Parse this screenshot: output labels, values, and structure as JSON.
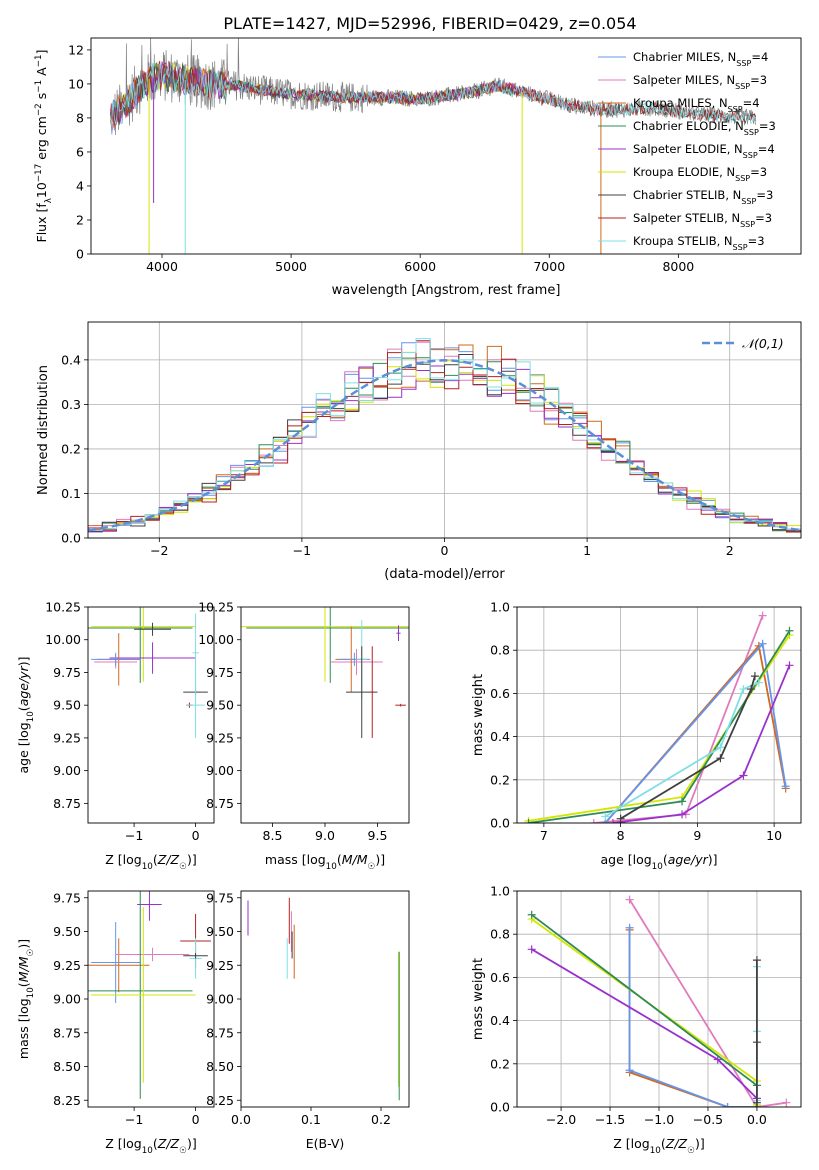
{
  "figure": {
    "title": "PLATE=1427, MJD=52996, FIBERID=0429, z=0.054"
  },
  "colors": {
    "Chabrier MILES": "#6495ed",
    "Salpeter MILES": "#e07bbd",
    "Kroupa MILES": "#d2691e",
    "Chabrier ELODIE": "#2e8b57",
    "Salpeter ELODIE": "#9932cc",
    "Kroupa ELODIE": "#d4e600",
    "Chabrier STELIB": "#404040",
    "Salpeter STELIB": "#b22222",
    "Kroupa STELIB": "#7fdfe6",
    "data": "#808080"
  },
  "chart_data": [
    {
      "id": "spectrum",
      "type": "line",
      "xlabel": "wavelength [Angstrom, rest frame]",
      "ylabel": "Flux [f_λ 10⁻¹⁷ erg cm⁻² s⁻¹ A⁻¹]",
      "xlim": [
        3450,
        8950
      ],
      "ylim": [
        0,
        12.7
      ],
      "xticks": [
        4000,
        5000,
        6000,
        7000,
        8000
      ],
      "yticks": [
        0,
        2,
        4,
        6,
        8,
        10,
        12
      ],
      "legend_position": "top-right",
      "legend": [
        "Chabrier MILES, N_SSP=4",
        "Salpeter MILES, N_SSP=3",
        "Kroupa MILES, N_SSP=4",
        "Chabrier ELODIE, N_SSP=3",
        "Salpeter ELODIE, N_SSP=4",
        "Kroupa ELODIE, N_SSP=3",
        "Chabrier STELIB, N_SSP=3",
        "Salpeter STELIB, N_SSP=3",
        "Kroupa STELIB, N_SSP=3"
      ],
      "continuum": {
        "x": [
          3600,
          3700,
          3800,
          3900,
          4000,
          4100,
          4200,
          4400,
          4600,
          4800,
          5000,
          5200,
          5400,
          5600,
          5800,
          6000,
          6200,
          6400,
          6600,
          6800,
          7000,
          7200,
          7400,
          7600,
          7800,
          8000,
          8200,
          8400,
          8600
        ],
        "y": [
          8.0,
          8.6,
          9.6,
          10.3,
          10.5,
          10.4,
          10.2,
          10.0,
          9.9,
          9.6,
          9.4,
          9.3,
          9.2,
          9.2,
          9.2,
          9.1,
          9.3,
          9.5,
          9.9,
          9.5,
          9.1,
          8.7,
          8.5,
          8.5,
          8.6,
          8.4,
          8.2,
          8.1,
          8.0
        ]
      },
      "dips": [
        {
          "x": 3900,
          "y": 0,
          "series": "Kroupa ELODIE"
        },
        {
          "x": 3935,
          "y": 3.0,
          "series": "Salpeter ELODIE"
        },
        {
          "x": 4180,
          "y": 0,
          "series": "Kroupa STELIB"
        },
        {
          "x": 6790,
          "y": 0,
          "series": "Kroupa ELODIE"
        },
        {
          "x": 7400,
          "y": 0,
          "series": "Kroupa MILES"
        }
      ]
    },
    {
      "id": "residuals",
      "type": "histogram",
      "xlabel": "(data-model)/error",
      "ylabel": "Normed distribution",
      "xlim": [
        -2.5,
        2.5
      ],
      "ylim": [
        0,
        0.485
      ],
      "xticks": [
        -2,
        -1,
        0,
        1,
        2
      ],
      "yticks": [
        0.0,
        0.1,
        0.2,
        0.3,
        0.4
      ],
      "legend_position": "top-right",
      "legend": [
        "𝒩(0,1)"
      ],
      "bin_width": 0.1,
      "grid": true
    },
    {
      "id": "age_vs_Z",
      "type": "errorbar",
      "xlabel": "Z [log₁₀(Z/Z☉)]",
      "ylabel": "age  [log₁₀(age/yr)]",
      "xlim": [
        -1.75,
        0.3
      ],
      "ylim": [
        8.6,
        10.25
      ],
      "xticks": [
        -1,
        0
      ],
      "yticks": [
        8.75,
        9.0,
        9.25,
        9.5,
        9.75,
        10.0,
        10.25
      ],
      "points": [
        {
          "s": "Chabrier ELODIE",
          "x": -0.9,
          "y": 10.09,
          "xe": 0.85,
          "ye": 0.42
        },
        {
          "s": "Kroupa ELODIE",
          "x": -0.85,
          "y": 10.1,
          "xe": 0.85,
          "ye": 0.42
        },
        {
          "s": "Chabrier STELIB",
          "x": -0.7,
          "y": 10.08,
          "xe": 0.3,
          "ye": 0.05
        },
        {
          "s": "Salpeter ELODIE",
          "x": -0.7,
          "y": 9.86,
          "xe": 0.7,
          "ye": 0.12
        },
        {
          "s": "Kroupa MILES",
          "x": -1.25,
          "y": 9.85,
          "xe": 0.35,
          "ye": 0.2
        },
        {
          "s": "Salpeter MILES",
          "x": -1.3,
          "y": 9.83,
          "xe": 0.35,
          "ye": 0.05
        },
        {
          "s": "Chabrier MILES",
          "x": -1.3,
          "y": 9.85,
          "xe": 0.4,
          "ye": 0.05
        },
        {
          "s": "Kroupa STELIB",
          "x": 0.0,
          "y": 9.9,
          "xe": 0.05,
          "ye": 0.3
        },
        {
          "s": "Chabrier STELIB",
          "x": 0.0,
          "y": 9.6,
          "xe": 0.2,
          "ye": 0.02
        },
        {
          "s": "Salpeter STELIB",
          "x": -0.1,
          "y": 9.5,
          "xe": 0.05,
          "ye": 0.02
        },
        {
          "s": "Kroupa STELIB",
          "x": 0.0,
          "y": 9.5,
          "xe": 0.15,
          "ye": 0.25
        }
      ]
    },
    {
      "id": "age_vs_mass",
      "type": "errorbar",
      "xlabel": "mass [log₁₀(M/M☉)]",
      "ylabel": "",
      "xlim": [
        8.2,
        9.8
      ],
      "ylim": [
        8.6,
        10.25
      ],
      "xticks": [
        8.5,
        9.0,
        9.5
      ],
      "yticks": [
        8.75,
        9.0,
        9.25,
        9.5,
        9.75,
        10.0,
        10.25
      ],
      "points": [
        {
          "s": "Chabrier ELODIE",
          "x": 9.05,
          "y": 10.09,
          "xe": 0.8,
          "ye": 0.42
        },
        {
          "s": "Kroupa ELODIE",
          "x": 9.0,
          "y": 10.1,
          "xe": 0.8,
          "ye": 0.42
        },
        {
          "s": "Salpeter ELODIE",
          "x": 9.7,
          "y": 10.05,
          "xe": 0.02,
          "ye": 0.06
        },
        {
          "s": "Salpeter MILES",
          "x": 9.3,
          "y": 9.83,
          "xe": 0.25,
          "ye": 0.1
        },
        {
          "s": "Kroupa MILES",
          "x": 9.25,
          "y": 9.85,
          "xe": 0.15,
          "ye": 0.25
        },
        {
          "s": "Chabrier MILES",
          "x": 9.28,
          "y": 9.85,
          "xe": 0.15,
          "ye": 0.05
        },
        {
          "s": "Kroupa STELIB",
          "x": 9.35,
          "y": 9.85,
          "xe": 0.05,
          "ye": 0.3
        },
        {
          "s": "Chabrier STELIB",
          "x": 9.35,
          "y": 9.6,
          "xe": 0.15,
          "ye": 0.35
        },
        {
          "s": "Salpeter STELIB",
          "x": 9.45,
          "y": 9.6,
          "xe": 0.02,
          "ye": 0.35
        },
        {
          "s": "Salpeter STELIB",
          "x": 9.72,
          "y": 9.5,
          "xe": 0.05,
          "ye": 0.01
        }
      ]
    },
    {
      "id": "massweight_vs_age",
      "type": "line",
      "xlabel": "age  [log₁₀(age/yr)]",
      "ylabel": "mass weight",
      "xlim": [
        6.65,
        10.35
      ],
      "ylim": [
        0,
        1.0
      ],
      "xticks": [
        7,
        8,
        9,
        10
      ],
      "yticks": [
        0.0,
        0.2,
        0.4,
        0.6,
        0.8,
        1.0
      ],
      "grid": true,
      "series": [
        {
          "name": "Salpeter MILES",
          "x": [
            7.65,
            8.85,
            9.85
          ],
          "y": [
            0.0,
            0.04,
            0.96
          ]
        },
        {
          "name": "Kroupa MILES",
          "x": [
            7.8,
            9.8,
            10.15
          ],
          "y": [
            0.0,
            0.82,
            0.16
          ]
        },
        {
          "name": "Chabrier MILES",
          "x": [
            7.8,
            9.85,
            10.15
          ],
          "y": [
            0.0,
            0.83,
            0.17
          ]
        },
        {
          "name": "Salpeter ELODIE",
          "x": [
            7.9,
            8.8,
            9.6,
            10.2
          ],
          "y": [
            0.0,
            0.04,
            0.22,
            0.73
          ]
        },
        {
          "name": "Kroupa ELODIE",
          "x": [
            6.8,
            8.8,
            10.2
          ],
          "y": [
            0.01,
            0.12,
            0.87
          ]
        },
        {
          "name": "Chabrier ELODIE",
          "x": [
            6.8,
            8.8,
            10.2
          ],
          "y": [
            0.0,
            0.1,
            0.89
          ]
        },
        {
          "name": "Kroupa STELIB",
          "x": [
            7.8,
            9.3,
            9.6,
            9.8
          ],
          "y": [
            0.03,
            0.35,
            0.62,
            0.65
          ]
        },
        {
          "name": "Chabrier STELIB",
          "x": [
            8.0,
            9.3,
            9.7,
            9.75
          ],
          "y": [
            0.02,
            0.3,
            0.62,
            0.68
          ]
        }
      ]
    },
    {
      "id": "mass_vs_Z",
      "type": "errorbar",
      "xlabel": "Z [log₁₀(Z/Z☉)]",
      "ylabel": "mass [log₁₀(M/M☉)]",
      "xlim": [
        -1.75,
        0.3
      ],
      "ylim": [
        8.2,
        9.8
      ],
      "xticks": [
        -1,
        0
      ],
      "yticks": [
        8.25,
        8.5,
        8.75,
        9.0,
        9.25,
        9.5,
        9.75
      ],
      "points": [
        {
          "s": "Salpeter ELODIE",
          "x": -0.75,
          "y": 9.7,
          "xe": 0.2,
          "ye": 0.12
        },
        {
          "s": "Salpeter STELIB",
          "x": 0.0,
          "y": 9.43,
          "xe": 0.25,
          "ye": 0.2
        },
        {
          "s": "Kroupa MILES",
          "x": -1.25,
          "y": 9.25,
          "xe": 0.5,
          "ye": 0.2
        },
        {
          "s": "Salpeter MILES",
          "x": -0.7,
          "y": 9.33,
          "xe": 0.6,
          "ye": 0.05
        },
        {
          "s": "Chabrier MILES",
          "x": -1.3,
          "y": 9.27,
          "xe": 0.4,
          "ye": 0.3
        },
        {
          "s": "Kroupa STELIB",
          "x": 0.0,
          "y": 9.3,
          "xe": 0.1,
          "ye": 0.15
        },
        {
          "s": "Chabrier STELIB",
          "x": 0.0,
          "y": 9.32,
          "xe": 0.2,
          "ye": 0.02
        },
        {
          "s": "Chabrier ELODIE",
          "x": -0.9,
          "y": 9.06,
          "xe": 0.85,
          "ye": 0.8
        },
        {
          "s": "Kroupa ELODIE",
          "x": -0.85,
          "y": 9.03,
          "xe": 0.85,
          "ye": 0.65
        }
      ]
    },
    {
      "id": "mass_vs_ebv",
      "type": "errorbar",
      "xlabel": "E(B-V)",
      "ylabel": "",
      "xlim": [
        0.0,
        0.24
      ],
      "ylim": [
        8.2,
        9.8
      ],
      "xticks": [
        0.0,
        0.1,
        0.2
      ],
      "yticks": [
        8.25,
        8.5,
        8.75,
        9.0,
        9.25,
        9.5,
        9.75
      ],
      "points": [
        {
          "s": "Salpeter ELODIE",
          "x": 0.01,
          "y": 9.6,
          "xe": 0.0,
          "ye": 0.13
        },
        {
          "s": "Salpeter STELIB",
          "x": 0.069,
          "y": 9.58,
          "xe": 0.0,
          "ye": 0.17
        },
        {
          "s": "Salpeter MILES",
          "x": 0.072,
          "y": 9.5,
          "xe": 0.0,
          "ye": 0.15
        },
        {
          "s": "Kroupa STELIB",
          "x": 0.066,
          "y": 9.3,
          "xe": 0.0,
          "ye": 0.15
        },
        {
          "s": "Kroupa MILES",
          "x": 0.076,
          "y": 9.35,
          "xe": 0.0,
          "ye": 0.2
        },
        {
          "s": "Chabrier STELIB",
          "x": 0.073,
          "y": 9.4,
          "xe": 0.0,
          "ye": 0.1
        },
        {
          "s": "Kroupa ELODIE",
          "x": 0.225,
          "y": 8.85,
          "xe": 0.0,
          "ye": 0.5
        },
        {
          "s": "Chabrier ELODIE",
          "x": 0.226,
          "y": 8.8,
          "xe": 0.0,
          "ye": 0.55
        }
      ]
    },
    {
      "id": "massweight_vs_Z",
      "type": "line",
      "xlabel": "Z [log₁₀(Z/Z☉)]",
      "ylabel": "mass weight",
      "xlim": [
        -2.45,
        0.45
      ],
      "ylim": [
        0,
        1.0
      ],
      "xticks": [
        -2.0,
        -1.5,
        -1.0,
        -0.5,
        0.0
      ],
      "yticks": [
        0.0,
        0.2,
        0.4,
        0.6,
        0.8,
        1.0
      ],
      "grid": true,
      "series": [
        {
          "name": "Salpeter MILES",
          "x": [
            -1.3,
            0.0,
            0.3
          ],
          "y": [
            0.96,
            0.0,
            0.02
          ]
        },
        {
          "name": "Kroupa MILES",
          "x": [
            -1.3,
            -1.3,
            -0.3,
            0.0
          ],
          "y": [
            0.82,
            0.16,
            0.0,
            0.0
          ]
        },
        {
          "name": "Chabrier MILES",
          "x": [
            -1.3,
            -1.3,
            -0.3,
            0.0
          ],
          "y": [
            0.83,
            0.17,
            0.0,
            0.0
          ]
        },
        {
          "name": "Salpeter ELODIE",
          "x": [
            -2.3,
            -0.4,
            0.0
          ],
          "y": [
            0.73,
            0.22,
            0.04
          ]
        },
        {
          "name": "Kroupa ELODIE",
          "x": [
            -2.3,
            0.0,
            0.0
          ],
          "y": [
            0.87,
            0.12,
            0.01
          ]
        },
        {
          "name": "Chabrier ELODIE",
          "x": [
            -2.3,
            0.0,
            0.0
          ],
          "y": [
            0.89,
            0.1,
            0.0
          ]
        },
        {
          "name": "Kroupa STELIB",
          "x": [
            0.0,
            0.0,
            0.0
          ],
          "y": [
            0.03,
            0.35,
            0.65
          ]
        },
        {
          "name": "Chabrier STELIB",
          "x": [
            0.0,
            0.0,
            0.0
          ],
          "y": [
            0.02,
            0.3,
            0.68
          ]
        }
      ]
    }
  ]
}
